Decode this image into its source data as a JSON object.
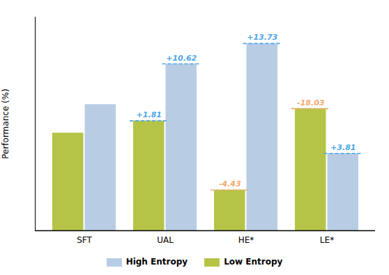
{
  "chart_data": {
    "type": "bar",
    "categories": [
      "SFT",
      "UAL",
      "HE*",
      "LE*"
    ],
    "series": [
      {
        "name": "Low Entropy",
        "color": "#b5c447",
        "values": [
          48,
          54,
          20,
          60
        ]
      },
      {
        "name": "High Entropy",
        "color": "#b8cce4",
        "values": [
          62,
          82,
          92,
          38
        ]
      }
    ],
    "ylabel": "Performance (%)",
    "ylim": [
      0,
      105
    ],
    "yticks": [],
    "grid": false,
    "tick_labels": "x",
    "legend": "bottom",
    "annotations": [
      {
        "text": "+1.81",
        "category": "UAL",
        "series": "Low Entropy",
        "color": "#4da6e8"
      },
      {
        "text": "+10.62",
        "category": "UAL",
        "series": "High Entropy",
        "color": "#4da6e8"
      },
      {
        "text": "+13.73",
        "category": "HE*",
        "series": "High Entropy",
        "color": "#4da6e8"
      },
      {
        "text": "-4.43",
        "category": "HE*",
        "series": "Low Entropy",
        "color": "#f5a86e"
      },
      {
        "text": "+3.81",
        "category": "LE*",
        "series": "High Entropy",
        "color": "#4da6e8"
      },
      {
        "text": "-18.03",
        "category": "LE*",
        "series": "Low Entropy",
        "color": "#f5a86e"
      }
    ]
  }
}
